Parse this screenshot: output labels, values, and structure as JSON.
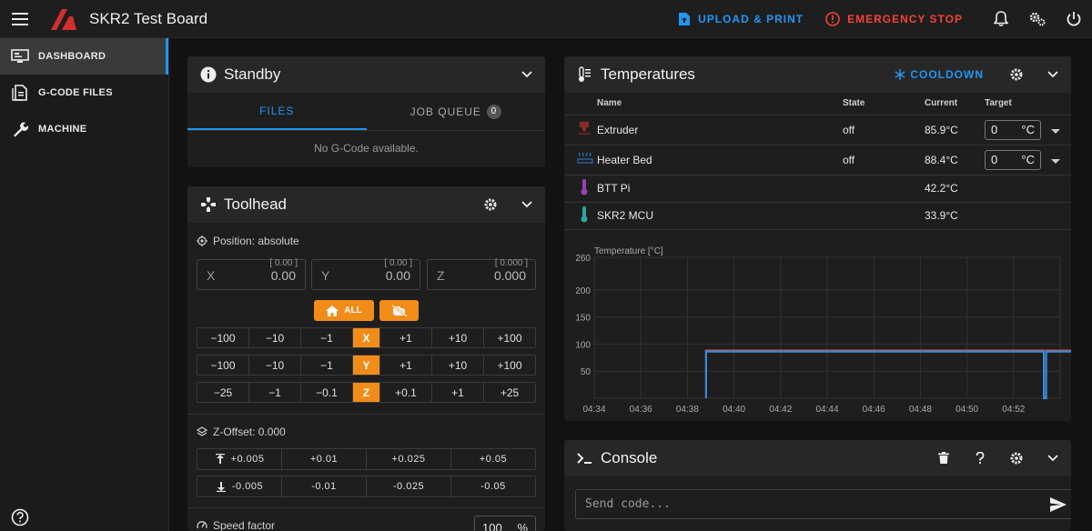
{
  "app": {
    "title": "SKR2 Test Board"
  },
  "topbar": {
    "upload_label": "UPLOAD & PRINT",
    "estop_label": "EMERGENCY STOP"
  },
  "sidebar": {
    "items": [
      {
        "label": "DASHBOARD",
        "icon": "monitor-dashboard-icon",
        "active": true
      },
      {
        "label": "G-CODE FILES",
        "icon": "file-document-icon",
        "active": false
      },
      {
        "label": "MACHINE",
        "icon": "wrench-icon",
        "active": false
      }
    ]
  },
  "status_card": {
    "title": "Standby",
    "tabs": [
      {
        "label": "FILES",
        "active": true
      },
      {
        "label": "JOB QUEUE",
        "badge": "0",
        "active": false
      }
    ],
    "empty_message": "No G-Code available."
  },
  "toolhead": {
    "title": "Toolhead",
    "position_label": "Position: absolute",
    "fields": [
      {
        "axis": "X",
        "hint": "[ 0.00 ]",
        "value": "0.00"
      },
      {
        "axis": "Y",
        "hint": "[ 0.00 ]",
        "value": "0.00"
      },
      {
        "axis": "Z",
        "hint": "[ 0.000 ]",
        "value": "0.000"
      }
    ],
    "home_all_label": "ALL",
    "jog_rows": [
      {
        "axis": "X",
        "neg": [
          "−100",
          "−10",
          "−1"
        ],
        "pos": [
          "+1",
          "+10",
          "+100"
        ]
      },
      {
        "axis": "Y",
        "neg": [
          "−100",
          "−10",
          "−1"
        ],
        "pos": [
          "+1",
          "+10",
          "+100"
        ]
      },
      {
        "axis": "Z",
        "neg": [
          "−25",
          "−1",
          "−0.1"
        ],
        "pos": [
          "+0.1",
          "+1",
          "+25"
        ]
      }
    ],
    "zoffset_label": "Z-Offset: 0.000",
    "zoffset_up": [
      "+0.005",
      "+0.01",
      "+0.025",
      "+0.05"
    ],
    "zoffset_down": [
      "-0.005",
      "-0.01",
      "-0.025",
      "-0.05"
    ],
    "speed_label": "Speed factor",
    "speed_value": "100",
    "speed_unit": "%"
  },
  "temperatures": {
    "title": "Temperatures",
    "cooldown_label": "COOLDOWN",
    "columns": {
      "name": "Name",
      "state": "State",
      "current": "Current",
      "target": "Target"
    },
    "rows": [
      {
        "name": "Extruder",
        "state": "off",
        "current": "85.9°C",
        "target": "0",
        "unit": "°C",
        "icon_color": "#8b2a2a"
      },
      {
        "name": "Heater Bed",
        "state": "off",
        "current": "88.4°C",
        "target": "0",
        "unit": "°C",
        "icon_color": "#2b6cb0"
      },
      {
        "name": "BTT Pi",
        "state": "",
        "current": "42.2°C",
        "icon_color": "#9b3fb5"
      },
      {
        "name": "SKR2 MCU",
        "state": "",
        "current": "33.9°C",
        "icon_color": "#2aa89a"
      }
    ]
  },
  "chart_data": {
    "type": "line",
    "ylabel": "Temperature [°C]",
    "ylim": [
      0,
      260
    ],
    "yticks": [
      260,
      200,
      150,
      100,
      50
    ],
    "x": [
      "04:34",
      "04:36",
      "04:38",
      "04:40",
      "04:42",
      "04:44",
      "04:46",
      "04:48",
      "04:50",
      "04:52"
    ],
    "grid": true,
    "series": [
      {
        "color": "#d9534f",
        "points": [
          [
            4.8,
            0
          ],
          [
            4.8,
            88
          ],
          [
            19.3,
            88
          ],
          [
            19.3,
            2
          ],
          [
            19.4,
            2
          ],
          [
            19.4,
            88
          ],
          [
            20.6,
            88
          ],
          [
            20.6,
            42
          ],
          [
            21,
            42
          ]
        ]
      },
      {
        "color": "#2f8fe6",
        "points": [
          [
            4.8,
            0
          ],
          [
            4.8,
            86
          ],
          [
            19.3,
            86
          ],
          [
            19.3,
            0
          ],
          [
            19.4,
            0
          ],
          [
            19.4,
            86
          ],
          [
            20.6,
            86
          ],
          [
            20.6,
            30
          ],
          [
            21,
            30
          ]
        ]
      },
      {
        "color": "#1fb8b0",
        "points": [
          [
            20.6,
            36
          ],
          [
            21,
            36
          ]
        ]
      }
    ]
  },
  "console": {
    "title": "Console",
    "placeholder": "Send code..."
  }
}
